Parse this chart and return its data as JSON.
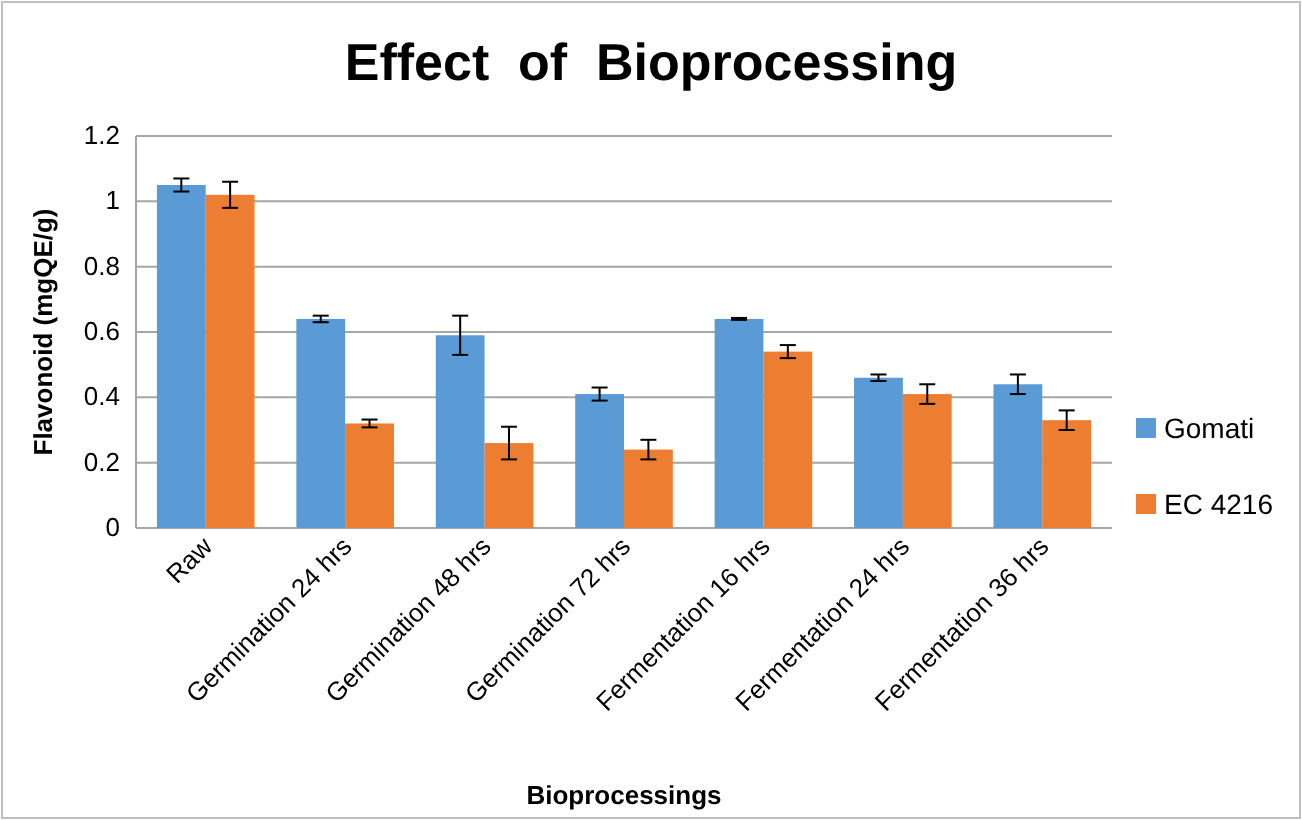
{
  "chart_data": {
    "type": "bar",
    "title": "Effect  of  Bioprocessing",
    "xlabel": "Bioprocessings",
    "ylabel": "Flavonoid (mgQE/g)",
    "categories": [
      "Raw",
      "Germination 24 hrs",
      "Germination 48 hrs",
      "Germination 72 hrs",
      "Fermentation 16 hrs",
      "Fermentation 24 hrs",
      "Fermentation 36 hrs"
    ],
    "series": [
      {
        "name": "Gomati",
        "color": "#5b9bd5",
        "values": [
          1.05,
          0.64,
          0.59,
          0.41,
          0.64,
          0.46,
          0.44
        ],
        "errors": [
          0.02,
          0.01,
          0.06,
          0.02,
          0.003,
          0.01,
          0.03
        ]
      },
      {
        "name": "EC 4216",
        "color": "#ed7d31",
        "values": [
          1.02,
          0.32,
          0.26,
          0.24,
          0.54,
          0.41,
          0.33
        ],
        "errors": [
          0.04,
          0.012,
          0.05,
          0.03,
          0.02,
          0.03,
          0.03
        ]
      }
    ],
    "ylim": [
      0,
      1.2
    ],
    "yticks": [
      {
        "value": 0,
        "label": "0"
      },
      {
        "value": 0.2,
        "label": "0.2"
      },
      {
        "value": 0.4,
        "label": "0.4"
      },
      {
        "value": 0.6,
        "label": "0.6"
      },
      {
        "value": 0.8,
        "label": "0.8"
      },
      {
        "value": 1,
        "label": "1"
      },
      {
        "value": 1.2,
        "label": "1.2"
      }
    ],
    "grid": "y",
    "legend": "right"
  }
}
